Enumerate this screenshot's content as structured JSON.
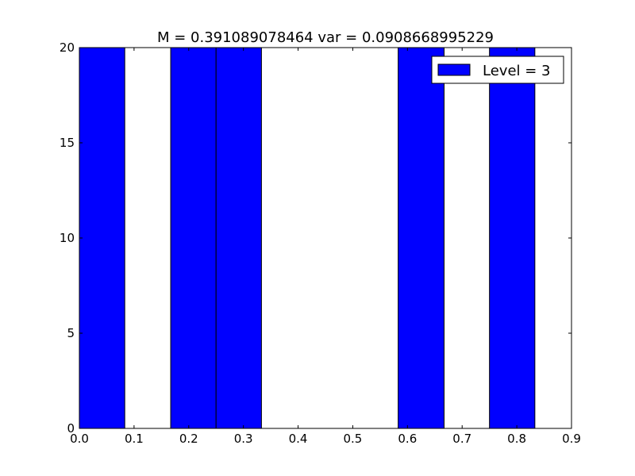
{
  "chart_data": {
    "type": "bar",
    "title": "M = 0.391089078464 var = 0.0908668995229",
    "xlabel": "",
    "ylabel": "",
    "xlim": [
      0.0,
      0.9
    ],
    "ylim": [
      0,
      20
    ],
    "xticks": [
      "0.0",
      "0.1",
      "0.2",
      "0.3",
      "0.4",
      "0.5",
      "0.6",
      "0.7",
      "0.8",
      "0.9"
    ],
    "yticks": [
      "0",
      "5",
      "10",
      "15",
      "20"
    ],
    "grid": false,
    "legend_position": "top-right",
    "series": [
      {
        "name": "Level = 3",
        "color": "#0000ff",
        "bars": [
          {
            "x0": 0.0,
            "x1": 0.083,
            "value": 20
          },
          {
            "x0": 0.167,
            "x1": 0.25,
            "value": 20
          },
          {
            "x0": 0.25,
            "x1": 0.333,
            "value": 20
          },
          {
            "x0": 0.583,
            "x1": 0.667,
            "value": 20
          },
          {
            "x0": 0.75,
            "x1": 0.833,
            "value": 20
          }
        ]
      }
    ]
  }
}
